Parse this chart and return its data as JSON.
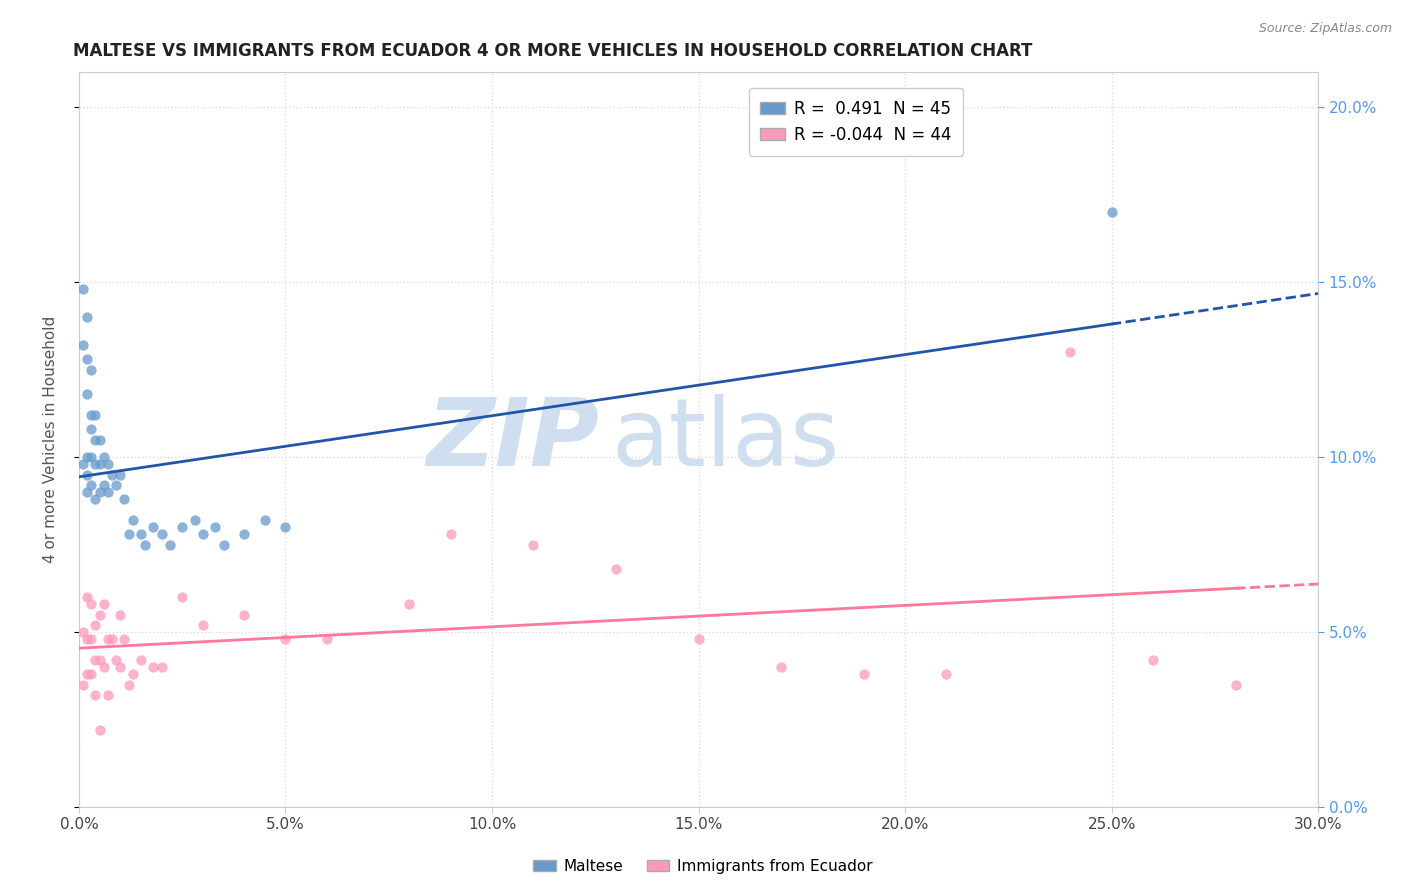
{
  "title": "MALTESE VS IMMIGRANTS FROM ECUADOR 4 OR MORE VEHICLES IN HOUSEHOLD CORRELATION CHART",
  "source": "Source: ZipAtlas.com",
  "ylabel": "4 or more Vehicles in Household",
  "xlim": [
    0.0,
    0.3
  ],
  "ylim": [
    0.0,
    0.21
  ],
  "xticks": [
    0.0,
    0.05,
    0.1,
    0.15,
    0.2,
    0.25,
    0.3
  ],
  "yticks": [
    0.0,
    0.05,
    0.1,
    0.15,
    0.2
  ],
  "legend_entries": [
    {
      "label": "R =  0.491  N = 45",
      "color": "#6699ff"
    },
    {
      "label": "R = -0.044  N = 44",
      "color": "#ff6699"
    }
  ],
  "maltese_x": [
    0.001,
    0.001,
    0.001,
    0.002,
    0.002,
    0.002,
    0.002,
    0.002,
    0.002,
    0.003,
    0.003,
    0.003,
    0.003,
    0.003,
    0.004,
    0.004,
    0.004,
    0.004,
    0.005,
    0.005,
    0.005,
    0.006,
    0.006,
    0.007,
    0.007,
    0.008,
    0.009,
    0.01,
    0.011,
    0.012,
    0.013,
    0.015,
    0.016,
    0.018,
    0.02,
    0.022,
    0.025,
    0.028,
    0.03,
    0.033,
    0.035,
    0.04,
    0.045,
    0.05,
    0.25
  ],
  "maltese_y": [
    0.148,
    0.132,
    0.098,
    0.14,
    0.128,
    0.118,
    0.1,
    0.095,
    0.09,
    0.125,
    0.112,
    0.108,
    0.1,
    0.092,
    0.112,
    0.105,
    0.098,
    0.088,
    0.105,
    0.098,
    0.09,
    0.1,
    0.092,
    0.098,
    0.09,
    0.095,
    0.092,
    0.095,
    0.088,
    0.078,
    0.082,
    0.078,
    0.075,
    0.08,
    0.078,
    0.075,
    0.08,
    0.082,
    0.078,
    0.08,
    0.075,
    0.078,
    0.082,
    0.08,
    0.17
  ],
  "ecuador_x": [
    0.001,
    0.001,
    0.002,
    0.002,
    0.002,
    0.003,
    0.003,
    0.003,
    0.004,
    0.004,
    0.004,
    0.005,
    0.005,
    0.005,
    0.006,
    0.006,
    0.007,
    0.007,
    0.008,
    0.009,
    0.01,
    0.01,
    0.011,
    0.012,
    0.013,
    0.015,
    0.018,
    0.02,
    0.025,
    0.03,
    0.04,
    0.05,
    0.06,
    0.08,
    0.09,
    0.11,
    0.13,
    0.15,
    0.17,
    0.19,
    0.21,
    0.24,
    0.26,
    0.28
  ],
  "ecuador_y": [
    0.05,
    0.035,
    0.06,
    0.048,
    0.038,
    0.058,
    0.048,
    0.038,
    0.052,
    0.042,
    0.032,
    0.055,
    0.042,
    0.022,
    0.058,
    0.04,
    0.048,
    0.032,
    0.048,
    0.042,
    0.055,
    0.04,
    0.048,
    0.035,
    0.038,
    0.042,
    0.04,
    0.04,
    0.06,
    0.052,
    0.055,
    0.048,
    0.048,
    0.058,
    0.078,
    0.075,
    0.068,
    0.048,
    0.04,
    0.038,
    0.038,
    0.13,
    0.042,
    0.035
  ],
  "maltese_color": "#6699cc",
  "ecuador_color": "#ff99bb",
  "trend_maltese_color": "#2255aa",
  "trend_ecuador_color": "#ff7799",
  "watermark_zip": "ZIP",
  "watermark_atlas": "atlas",
  "watermark_color": "#d0dff0",
  "background_color": "#ffffff",
  "grid_color": "#dddddd",
  "right_tick_color": "#5599ee",
  "bottom_legend_labels": [
    "Maltese",
    "Immigrants from Ecuador"
  ]
}
